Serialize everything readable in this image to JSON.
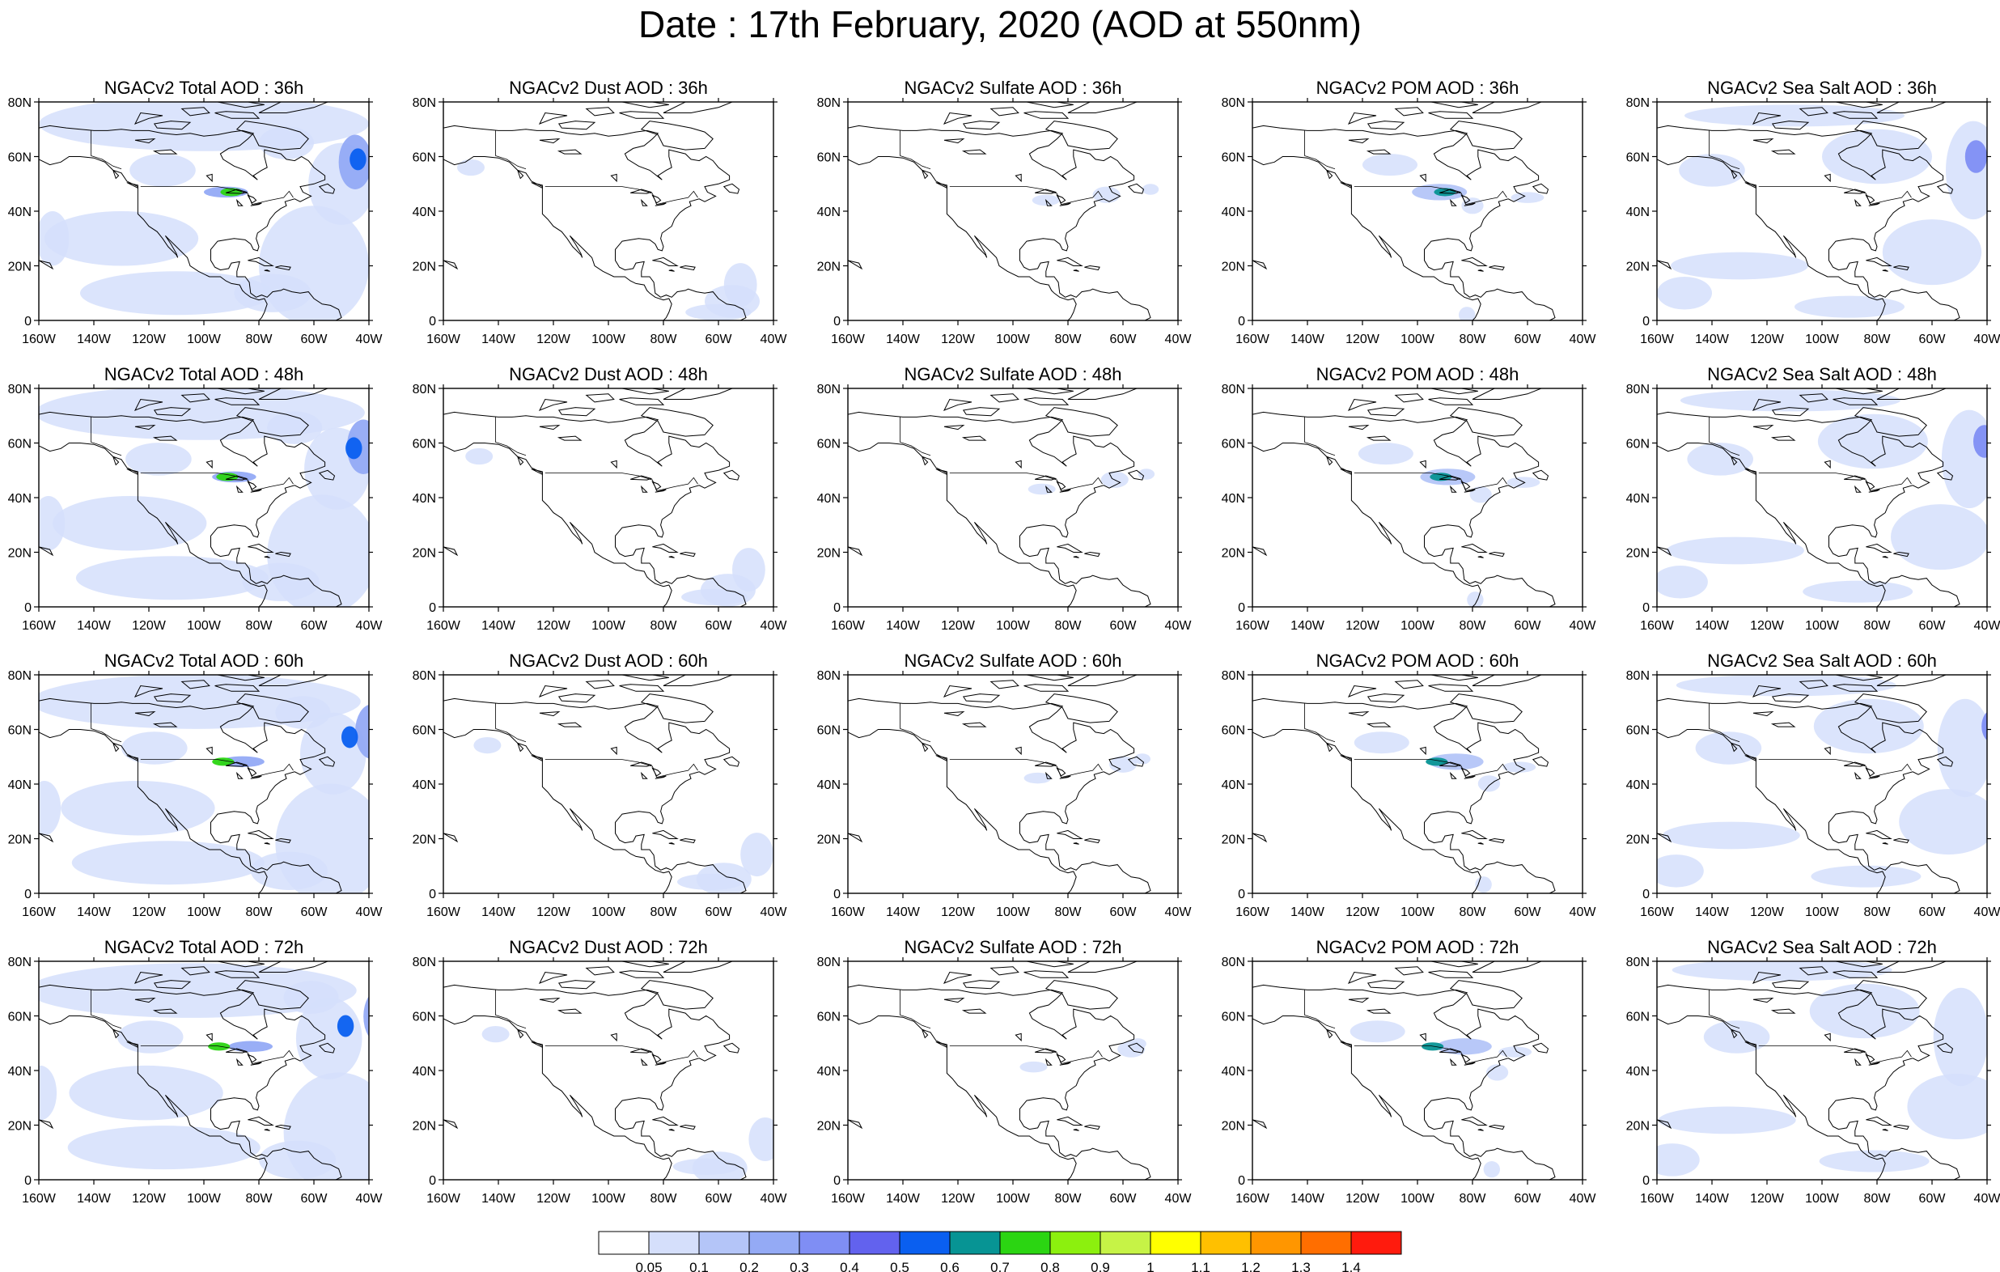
{
  "title": "Date : 17th February, 2020 (AOD at 550nm)",
  "column_titles": [
    "NGACv2 Total AOD",
    "NGACv2 Dust AOD",
    "NGACv2 Sulfate AOD",
    "NGACv2 POM AOD",
    "NGACv2 Sea Salt AOD"
  ],
  "row_hours": [
    "36h",
    "48h",
    "60h",
    "72h"
  ],
  "panel_titles": [
    [
      "NGACv2 Total AOD : 36h",
      "NGACv2 Dust AOD : 36h",
      "NGACv2 Sulfate AOD : 36h",
      "NGACv2 POM AOD : 36h",
      "NGACv2 Sea Salt AOD : 36h"
    ],
    [
      "NGACv2 Total AOD : 48h",
      "NGACv2 Dust AOD : 48h",
      "NGACv2 Sulfate AOD : 48h",
      "NGACv2 POM AOD : 48h",
      "NGACv2 Sea Salt AOD : 48h"
    ],
    [
      "NGACv2 Total AOD : 60h",
      "NGACv2 Dust AOD : 60h",
      "NGACv2 Sulfate AOD : 60h",
      "NGACv2 POM AOD : 60h",
      "NGACv2 Sea Salt AOD : 60h"
    ],
    [
      "NGACv2 Total AOD : 72h",
      "NGACv2 Dust AOD : 72h",
      "NGACv2 Sulfate AOD : 72h",
      "NGACv2 POM AOD : 72h",
      "NGACv2 Sea Salt  AOD : 72h"
    ]
  ],
  "lon_ticks": [
    "160W",
    "140W",
    "120W",
    "100W",
    "80W",
    "60W",
    "40W"
  ],
  "lat_ticks": [
    "0",
    "20N",
    "40N",
    "60N",
    "80N"
  ],
  "lon_range": [
    -160,
    -40
  ],
  "lat_range": [
    0,
    80
  ],
  "colorbar": {
    "labels": [
      "0.05",
      "0.1",
      "0.2",
      "0.3",
      "0.4",
      "0.5",
      "0.6",
      "0.7",
      "0.8",
      "0.9",
      "1",
      "1.1",
      "1.2",
      "1.3",
      "1.4"
    ],
    "colors": [
      "#ffffff",
      "#d5dffb",
      "#b4c5f8",
      "#94aaf5",
      "#7f8ef4",
      "#6262ee",
      "#0a5ff0",
      "#079494",
      "#2bd512",
      "#8cf00e",
      "#c6f346",
      "#ffff00",
      "#ffc000",
      "#ff9600",
      "#ff6e00",
      "#ff1b0d"
    ]
  },
  "colors": {
    "coastline": "#000000",
    "frame": "#000000"
  }
}
